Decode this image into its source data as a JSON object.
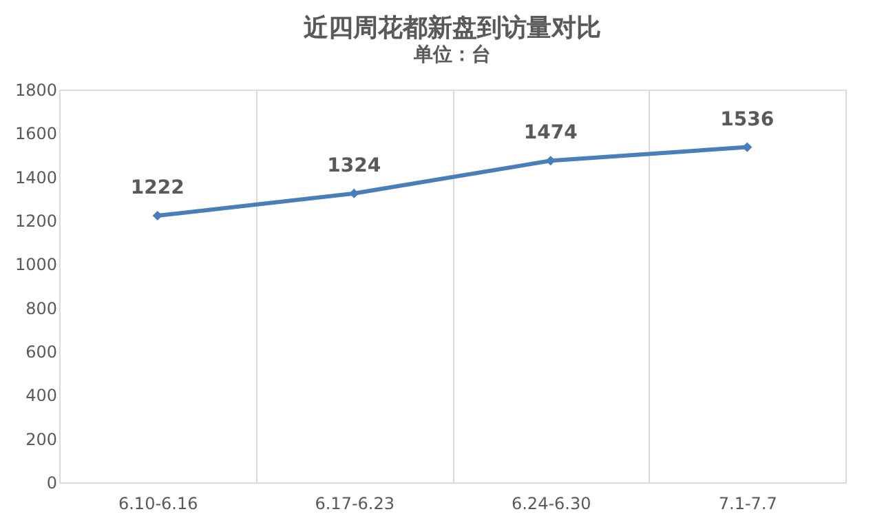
{
  "chart_data": {
    "type": "line",
    "title": "近四周花都新盘到访量对比",
    "subtitle": "单位：台",
    "categories": [
      "6.10-6.16",
      "6.17-6.23",
      "6.24-6.30",
      "7.1-7.7"
    ],
    "series": [
      {
        "color": "#4a7ebb",
        "values": [
          1222,
          1324,
          1474,
          1536
        ]
      }
    ],
    "ylim": [
      0,
      1800
    ],
    "yticks": [
      0,
      200,
      400,
      600,
      800,
      1000,
      1200,
      1400,
      1600,
      1800
    ],
    "grid": "x",
    "marker": "diamond",
    "line_style": "solid",
    "data_labels": true
  }
}
